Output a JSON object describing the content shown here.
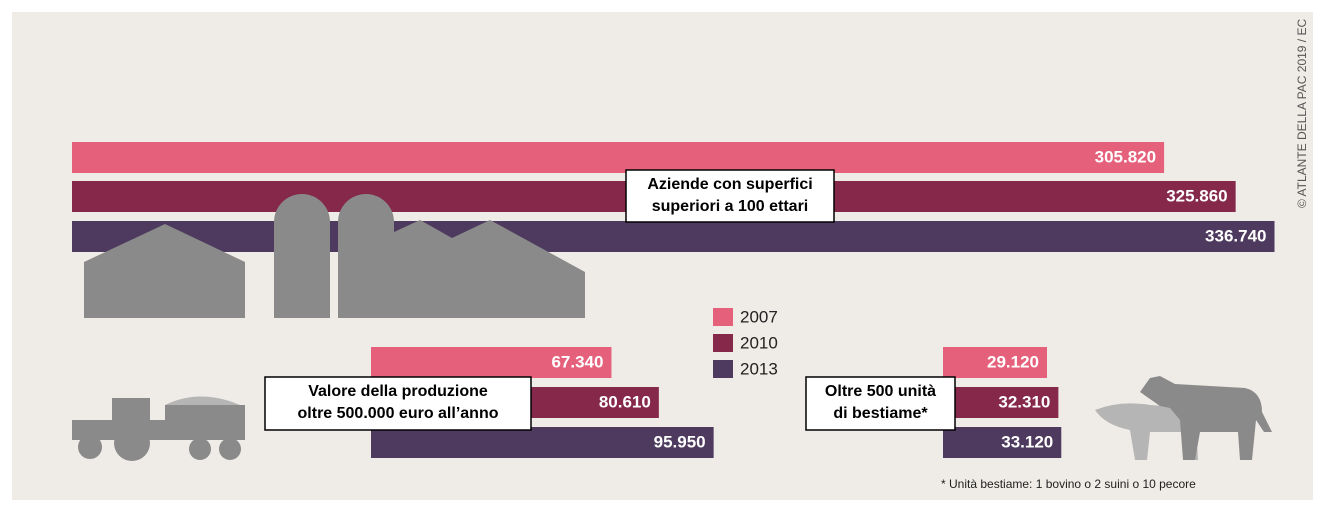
{
  "legend": {
    "categories": [
      "2007",
      "2010",
      "2013"
    ],
    "colors": [
      "#e5607a",
      "#85284a",
      "#4e3a5e"
    ]
  },
  "chart_data": [
    {
      "type": "bar",
      "title": [
        "Aziende con superfici",
        "superiori a 100 ettari"
      ],
      "values": [
        305820,
        325860,
        336740
      ],
      "value_labels": [
        "305.820",
        "325.860",
        "336.740"
      ]
    },
    {
      "type": "bar",
      "title": [
        "Valore della produzione",
        "oltre 500.000 euro all’anno"
      ],
      "values": [
        67340,
        80610,
        95950
      ],
      "value_labels": [
        "67.340",
        "80.610",
        "95.950"
      ]
    },
    {
      "type": "bar",
      "title": [
        "Oltre 500 unità",
        "di bestiame*"
      ],
      "values": [
        29120,
        32310,
        33120
      ],
      "value_labels": [
        "29.120",
        "32.310",
        "33.120"
      ]
    }
  ],
  "note": "* Unità bestiame: 1 bovino o 2 suini o 10 pecore",
  "source": "© ATLANTE DELLA PAC 2019 / EC"
}
